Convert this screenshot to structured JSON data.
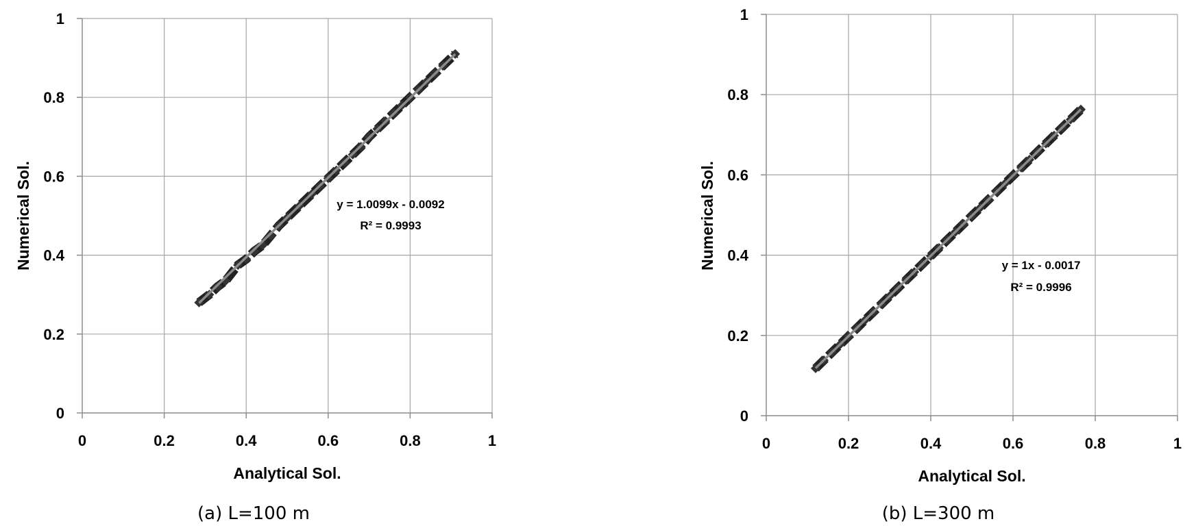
{
  "chart_data": [
    {
      "type": "scatter",
      "caption": "(a) L=100 m",
      "xlabel": "Analytical Sol.",
      "ylabel": "Numerical Sol.",
      "xlim": [
        0,
        1
      ],
      "ylim": [
        0,
        1
      ],
      "x_ticks": [
        "0",
        "0.2",
        "0.4",
        "0.6",
        "0.8",
        "1"
      ],
      "y_ticks": [
        "0",
        "0.2",
        "0.4",
        "0.6",
        "0.8",
        "1"
      ],
      "grid": true,
      "trendline": {
        "slope": 1.0099,
        "intercept": -0.0092,
        "equation": "y = 1.0099x - 0.0092",
        "r2_label": "R² = 0.9993"
      },
      "series": [
        {
          "x": [
            0.285,
            0.31,
            0.33,
            0.35,
            0.38,
            0.4,
            0.42,
            0.44,
            0.46,
            0.48,
            0.5,
            0.53,
            0.56,
            0.58,
            0.6,
            0.62,
            0.64,
            0.66,
            0.68,
            0.7,
            0.72,
            0.74,
            0.76,
            0.78,
            0.8,
            0.82,
            0.84,
            0.86,
            0.88,
            0.91
          ],
          "y": [
            0.28,
            0.3,
            0.32,
            0.335,
            0.375,
            0.39,
            0.41,
            0.425,
            0.45,
            0.475,
            0.495,
            0.525,
            0.555,
            0.575,
            0.595,
            0.615,
            0.635,
            0.655,
            0.675,
            0.7,
            0.72,
            0.74,
            0.76,
            0.78,
            0.8,
            0.82,
            0.84,
            0.86,
            0.88,
            0.91
          ]
        }
      ]
    },
    {
      "type": "scatter",
      "caption": "(b) L=300 m",
      "xlabel": "Analytical Sol.",
      "ylabel": "Numerical Sol.",
      "xlim": [
        0,
        1
      ],
      "ylim": [
        0,
        1
      ],
      "x_ticks": [
        "0",
        "0.2",
        "0.4",
        "0.6",
        "0.8",
        "1"
      ],
      "y_ticks": [
        "0",
        "0.2",
        "0.4",
        "0.6",
        "0.8",
        "1"
      ],
      "grid": true,
      "trendline": {
        "slope": 1,
        "intercept": -0.0017,
        "equation": "y = 1x - 0.0017",
        "r2_label": "R² = 0.9996"
      },
      "series": [
        {
          "x": [
            0.12,
            0.14,
            0.16,
            0.18,
            0.2,
            0.22,
            0.24,
            0.26,
            0.28,
            0.3,
            0.32,
            0.34,
            0.36,
            0.38,
            0.4,
            0.42,
            0.44,
            0.46,
            0.48,
            0.5,
            0.52,
            0.54,
            0.56,
            0.58,
            0.6,
            0.62,
            0.64,
            0.66,
            0.68,
            0.7,
            0.72,
            0.74,
            0.765
          ],
          "y": [
            0.118,
            0.138,
            0.158,
            0.178,
            0.198,
            0.218,
            0.238,
            0.258,
            0.278,
            0.298,
            0.318,
            0.338,
            0.358,
            0.378,
            0.398,
            0.418,
            0.438,
            0.458,
            0.478,
            0.498,
            0.518,
            0.538,
            0.558,
            0.578,
            0.598,
            0.618,
            0.638,
            0.658,
            0.678,
            0.698,
            0.718,
            0.738,
            0.763
          ]
        }
      ]
    }
  ]
}
